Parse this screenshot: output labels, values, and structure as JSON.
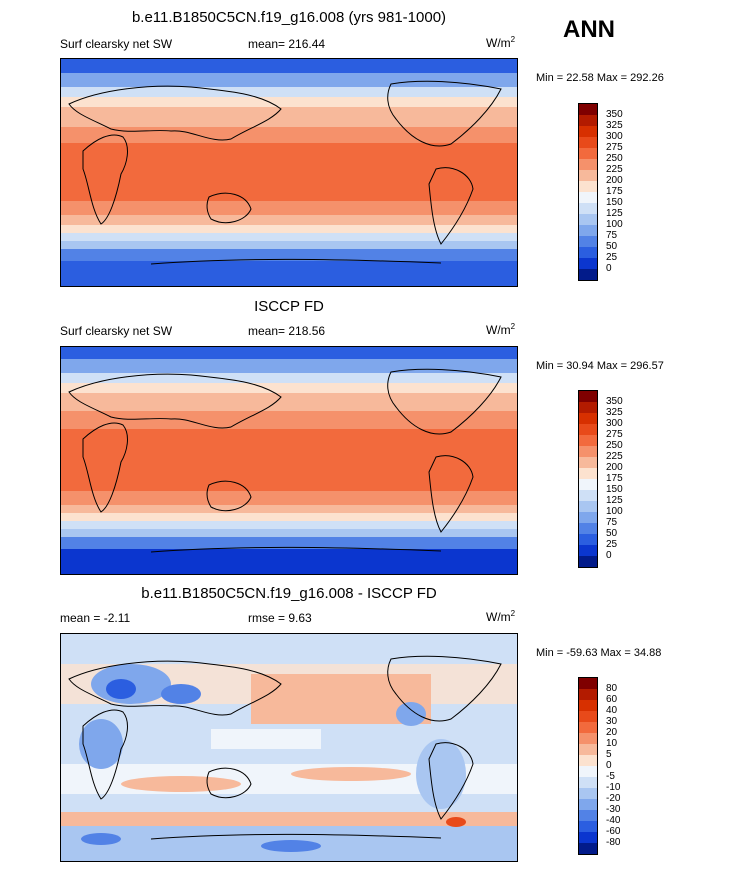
{
  "season": "ANN",
  "units": "W/m",
  "units_sup": "2",
  "panels": [
    {
      "title": "b.e11.B1850C5CN.f19_g16.008 (yrs 981-1000)",
      "left_label": "Surf clearsky net SW",
      "center_label": "mean= 216.44",
      "minmax": "Min =  22.58 Max = 292.26"
    },
    {
      "title": "ISCCP FD",
      "left_label": "Surf clearsky net SW",
      "center_label": "mean= 218.56",
      "minmax": "Min =  30.94 Max = 296.57"
    },
    {
      "title": "b.e11.B1850C5CN.f19_g16.008 - ISCCP FD",
      "left_label": "mean =  -2.11",
      "center_label": "rmse =   9.63",
      "minmax": "Min = -59.63 Max =  34.88"
    }
  ],
  "colorbar_abs": {
    "labels": [
      "350",
      "325",
      "300",
      "275",
      "250",
      "225",
      "200",
      "175",
      "150",
      "125",
      "100",
      "75",
      "50",
      "25",
      "0"
    ],
    "colors": [
      "#7f0000",
      "#b31b00",
      "#d73000",
      "#e84a1a",
      "#f26a3d",
      "#f5916b",
      "#f7b99b",
      "#fce2cf",
      "#f0f5fb",
      "#cfe0f6",
      "#a9c6f1",
      "#7fa7ec",
      "#5282e6",
      "#2b5ee0",
      "#0b36cf",
      "#021b8a"
    ]
  },
  "colorbar_diff": {
    "labels": [
      "80",
      "60",
      "40",
      "30",
      "20",
      "10",
      "5",
      "0",
      "-5",
      "-10",
      "-20",
      "-30",
      "-40",
      "-60",
      "-80"
    ],
    "colors": [
      "#7f0000",
      "#b31b00",
      "#d73000",
      "#e84a1a",
      "#f26a3d",
      "#f5916b",
      "#f7b99b",
      "#fce2cf",
      "#f0f5fb",
      "#cfe0f6",
      "#a9c6f1",
      "#7fa7ec",
      "#5282e6",
      "#2b5ee0",
      "#0b36cf",
      "#021b8a"
    ]
  },
  "chart_data": [
    {
      "type": "heatmap",
      "title": "b.e11.B1850C5CN.f19_g16.008 (yrs 981-1000)",
      "variable": "Surf clearsky net SW",
      "mean": 216.44,
      "min": 22.58,
      "max": 292.26,
      "units": "W/m2",
      "levels": [
        0,
        25,
        50,
        75,
        100,
        125,
        150,
        175,
        200,
        225,
        250,
        275,
        300,
        325,
        350
      ]
    },
    {
      "type": "heatmap",
      "title": "ISCCP FD",
      "variable": "Surf clearsky net SW",
      "mean": 218.56,
      "min": 30.94,
      "max": 296.57,
      "units": "W/m2",
      "levels": [
        0,
        25,
        50,
        75,
        100,
        125,
        150,
        175,
        200,
        225,
        250,
        275,
        300,
        325,
        350
      ]
    },
    {
      "type": "heatmap",
      "title": "b.e11.B1850C5CN.f19_g16.008 - ISCCP FD",
      "mean": -2.11,
      "rmse": 9.63,
      "min": -59.63,
      "max": 34.88,
      "units": "W/m2",
      "levels": [
        -80,
        -60,
        -40,
        -30,
        -20,
        -10,
        -5,
        0,
        5,
        10,
        20,
        30,
        40,
        60,
        80
      ]
    }
  ]
}
